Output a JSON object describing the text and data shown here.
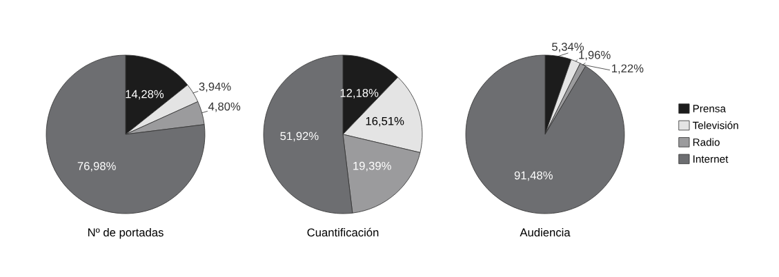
{
  "chart_data": [
    {
      "type": "pie",
      "title": "Nº de portadas",
      "categories": [
        "Prensa",
        "Televisión",
        "Radio",
        "Internet"
      ],
      "values": [
        14.28,
        3.94,
        4.8,
        76.98
      ],
      "value_labels": [
        "14,28%",
        "3,94%",
        "4,80%",
        "76,98%"
      ],
      "colors": [
        "#1c1c1c",
        "#e4e4e4",
        "#9b9b9d",
        "#6d6e71"
      ],
      "legend": "right"
    },
    {
      "type": "pie",
      "title": "Cuantificación",
      "categories": [
        null,
        null,
        null,
        null
      ],
      "values": [
        12.18,
        16.51,
        19.39,
        51.92
      ],
      "value_labels": [
        "12,18%",
        "16,51%",
        "19,39%",
        "51,92%"
      ],
      "colors": [
        "#1c1c1c",
        "#e4e4e4",
        "#9b9b9d",
        "#6d6e71"
      ]
    },
    {
      "type": "pie",
      "title": "Audiencia",
      "categories": [
        null,
        null,
        null,
        null
      ],
      "values": [
        5.34,
        1.96,
        1.22,
        91.48
      ],
      "value_labels": [
        "5,34%",
        "1,96%",
        "1,22%",
        "91,48%"
      ],
      "colors": [
        "#1c1c1c",
        "#e4e4e4",
        "#9b9b9d",
        "#6d6e71"
      ]
    }
  ]
}
